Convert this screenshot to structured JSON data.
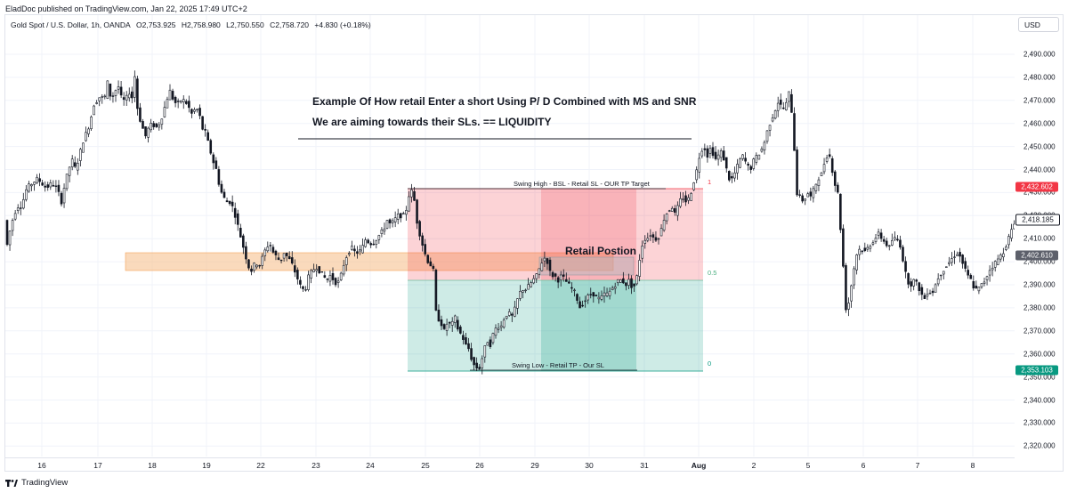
{
  "header": {
    "publisher": "EladDoc published on TradingView.com, Jan 22, 2025 17:49 UTC+2"
  },
  "symbol_bar": {
    "name": "Gold Spot / U.S. Dollar, 1h, OANDA",
    "open": "O2,753.925",
    "high": "H2,758.980",
    "low": "L2,750.550",
    "close": "C2,758.720",
    "change": "+4.830 (+0.18%)"
  },
  "currency_button": "USD",
  "annotations": {
    "title_line1": "Example Of How retail Enter a short Using P/ D Combined with MS and SNR",
    "title_line2": "We are aiming towards their SLs. == LIQUIDITY",
    "swing_high": "Swing High - BSL - Retail SL - OUR TP Target",
    "swing_low": "Swing Low - Retail TP - Our SL",
    "retail_position": "Retail Postion",
    "fib_1": "1",
    "fib_05": "0.5",
    "fib_0": "0"
  },
  "price_axis": {
    "ticks": [
      "2,490.000",
      "2,480.000",
      "2,470.000",
      "2,460.000",
      "2,450.000",
      "2,440.000",
      "2,430.000",
      "2,420.000",
      "2,410.000",
      "2,400.000",
      "2,390.000",
      "2,380.000",
      "2,370.000",
      "2,360.000",
      "2,350.000",
      "2,340.000",
      "2,330.000",
      "2,320.000"
    ],
    "tags": [
      {
        "label": "2,432.602",
        "color": "#f23645",
        "text_color": "#ffffff"
      },
      {
        "label": "2,418.185",
        "color": "#ffffff",
        "text_color": "#131722"
      },
      {
        "label": "2,402.610",
        "color": "#5d606b",
        "text_color": "#ffffff"
      },
      {
        "label": "2,353.103",
        "color": "#089981",
        "text_color": "#ffffff"
      }
    ]
  },
  "time_axis": {
    "ticks": [
      "16",
      "17",
      "18",
      "19",
      "22",
      "23",
      "24",
      "25",
      "26",
      "29",
      "30",
      "31",
      "Aug",
      "2",
      "5",
      "6",
      "7",
      "8"
    ]
  },
  "footer": {
    "brand": "TradingView"
  },
  "colors": {
    "red_zone": "#f23645",
    "green_zone": "#089981",
    "orange_zone": "#f7a34f",
    "candle": "#131722"
  },
  "chart_data": {
    "type": "candlestick",
    "title": "Gold Spot / U.S. Dollar, 1h, OANDA",
    "ylim": [
      2314,
      2497
    ],
    "swing_high_price": 2432.602,
    "swing_low_price": 2353.103,
    "fib_05_price": 2392.85,
    "last_price": 2418.185,
    "key_levels": [
      2432.602,
      2418.185,
      2402.61,
      2353.103
    ],
    "path": [
      [
        0,
        2402
      ],
      [
        3,
        2410
      ],
      [
        8,
        2418
      ],
      [
        13,
        2424
      ],
      [
        18,
        2424
      ],
      [
        24,
        2432
      ],
      [
        30,
        2434
      ],
      [
        36,
        2436
      ],
      [
        41,
        2434
      ],
      [
        46,
        2432
      ],
      [
        52,
        2434
      ],
      [
        58,
        2432
      ],
      [
        63,
        2426
      ],
      [
        67,
        2434
      ],
      [
        71,
        2440
      ],
      [
        75,
        2444
      ],
      [
        79,
        2440
      ],
      [
        83,
        2446
      ],
      [
        87,
        2452
      ],
      [
        91,
        2456
      ],
      [
        95,
        2460
      ],
      [
        99,
        2468
      ],
      [
        103,
        2470
      ],
      [
        107,
        2472
      ],
      [
        111,
        2470
      ],
      [
        115,
        2478
      ],
      [
        119,
        2470
      ],
      [
        123,
        2474
      ],
      [
        127,
        2476
      ],
      [
        131,
        2470
      ],
      [
        135,
        2470
      ],
      [
        139,
        2474
      ],
      [
        141,
        2470
      ],
      [
        143,
        2472
      ],
      [
        145,
        2482
      ],
      [
        149,
        2464
      ],
      [
        153,
        2460
      ],
      [
        157,
        2454
      ],
      [
        161,
        2458
      ],
      [
        165,
        2460
      ],
      [
        169,
        2458
      ],
      [
        173,
        2460
      ],
      [
        177,
        2464
      ],
      [
        181,
        2470
      ],
      [
        185,
        2474
      ],
      [
        189,
        2470
      ],
      [
        193,
        2468
      ],
      [
        197,
        2470
      ],
      [
        201,
        2470
      ],
      [
        205,
        2468
      ],
      [
        209,
        2464
      ],
      [
        213,
        2466
      ],
      [
        217,
        2466
      ],
      [
        221,
        2458
      ],
      [
        225,
        2456
      ],
      [
        229,
        2450
      ],
      [
        233,
        2444
      ],
      [
        237,
        2440
      ],
      [
        241,
        2432
      ],
      [
        245,
        2428
      ],
      [
        249,
        2426
      ],
      [
        253,
        2426
      ],
      [
        257,
        2422
      ],
      [
        261,
        2416
      ],
      [
        265,
        2410
      ],
      [
        269,
        2404
      ],
      [
        273,
        2398
      ],
      [
        277,
        2396
      ],
      [
        281,
        2400
      ],
      [
        285,
        2398
      ],
      [
        289,
        2402
      ],
      [
        293,
        2406
      ],
      [
        297,
        2408
      ],
      [
        301,
        2404
      ],
      [
        305,
        2402
      ],
      [
        309,
        2400
      ],
      [
        313,
        2404
      ],
      [
        317,
        2402
      ],
      [
        321,
        2400
      ],
      [
        325,
        2396
      ],
      [
        329,
        2392
      ],
      [
        333,
        2388
      ],
      [
        337,
        2388
      ],
      [
        341,
        2394
      ],
      [
        345,
        2396
      ],
      [
        349,
        2398
      ],
      [
        353,
        2396
      ],
      [
        357,
        2394
      ],
      [
        361,
        2392
      ],
      [
        365,
        2394
      ],
      [
        369,
        2392
      ],
      [
        373,
        2390
      ],
      [
        377,
        2394
      ],
      [
        381,
        2400
      ],
      [
        385,
        2404
      ],
      [
        389,
        2406
      ],
      [
        393,
        2404
      ],
      [
        397,
        2404
      ],
      [
        401,
        2406
      ],
      [
        405,
        2410
      ],
      [
        409,
        2408
      ],
      [
        413,
        2408
      ],
      [
        417,
        2410
      ],
      [
        421,
        2412
      ],
      [
        425,
        2414
      ],
      [
        429,
        2418
      ],
      [
        433,
        2416
      ],
      [
        437,
        2418
      ],
      [
        441,
        2420
      ],
      [
        445,
        2420
      ],
      [
        449,
        2420
      ],
      [
        453,
        2428
      ],
      [
        455,
        2432
      ],
      [
        459,
        2428
      ],
      [
        463,
        2416
      ],
      [
        467,
        2410
      ],
      [
        471,
        2404
      ],
      [
        475,
        2400
      ],
      [
        479,
        2398
      ],
      [
        481,
        2396
      ],
      [
        483,
        2380
      ],
      [
        485,
        2376
      ],
      [
        489,
        2374
      ],
      [
        493,
        2370
      ],
      [
        497,
        2374
      ],
      [
        501,
        2372
      ],
      [
        505,
        2376
      ],
      [
        509,
        2370
      ],
      [
        513,
        2368
      ],
      [
        517,
        2364
      ],
      [
        521,
        2362
      ],
      [
        525,
        2356
      ],
      [
        529,
        2354
      ],
      [
        533,
        2354
      ],
      [
        537,
        2360
      ],
      [
        541,
        2366
      ],
      [
        545,
        2364
      ],
      [
        549,
        2370
      ],
      [
        553,
        2372
      ],
      [
        557,
        2372
      ],
      [
        561,
        2376
      ],
      [
        565,
        2378
      ],
      [
        569,
        2376
      ],
      [
        573,
        2380
      ],
      [
        577,
        2386
      ],
      [
        581,
        2388
      ],
      [
        585,
        2388
      ],
      [
        589,
        2390
      ],
      [
        593,
        2392
      ],
      [
        597,
        2394
      ],
      [
        601,
        2398
      ],
      [
        605,
        2402
      ],
      [
        609,
        2400
      ],
      [
        613,
        2394
      ],
      [
        617,
        2394
      ],
      [
        621,
        2392
      ],
      [
        625,
        2394
      ],
      [
        629,
        2392
      ],
      [
        633,
        2390
      ],
      [
        637,
        2388
      ],
      [
        641,
        2386
      ],
      [
        645,
        2380
      ],
      [
        649,
        2382
      ],
      [
        653,
        2384
      ],
      [
        657,
        2386
      ],
      [
        661,
        2386
      ],
      [
        665,
        2384
      ],
      [
        669,
        2384
      ],
      [
        673,
        2386
      ],
      [
        677,
        2386
      ],
      [
        681,
        2388
      ],
      [
        685,
        2390
      ],
      [
        689,
        2392
      ],
      [
        693,
        2392
      ],
      [
        697,
        2390
      ],
      [
        701,
        2392
      ],
      [
        705,
        2388
      ],
      [
        709,
        2392
      ],
      [
        713,
        2402
      ],
      [
        717,
        2410
      ],
      [
        721,
        2410
      ],
      [
        725,
        2412
      ],
      [
        729,
        2410
      ],
      [
        733,
        2410
      ],
      [
        737,
        2414
      ],
      [
        741,
        2420
      ],
      [
        745,
        2422
      ],
      [
        749,
        2424
      ],
      [
        753,
        2420
      ],
      [
        757,
        2426
      ],
      [
        761,
        2428
      ],
      [
        765,
        2426
      ],
      [
        769,
        2428
      ],
      [
        773,
        2434
      ],
      [
        777,
        2440
      ],
      [
        781,
        2448
      ],
      [
        785,
        2450
      ],
      [
        789,
        2446
      ],
      [
        793,
        2450
      ],
      [
        797,
        2444
      ],
      [
        801,
        2446
      ],
      [
        805,
        2448
      ],
      [
        809,
        2442
      ],
      [
        813,
        2436
      ],
      [
        817,
        2436
      ],
      [
        821,
        2440
      ],
      [
        825,
        2444
      ],
      [
        829,
        2446
      ],
      [
        833,
        2442
      ],
      [
        837,
        2440
      ],
      [
        841,
        2444
      ],
      [
        845,
        2446
      ],
      [
        849,
        2448
      ],
      [
        853,
        2452
      ],
      [
        857,
        2458
      ],
      [
        861,
        2462
      ],
      [
        865,
        2466
      ],
      [
        869,
        2470
      ],
      [
        873,
        2466
      ],
      [
        877,
        2468
      ],
      [
        881,
        2474
      ],
      [
        885,
        2460
      ],
      [
        889,
        2430
      ],
      [
        893,
        2428
      ],
      [
        897,
        2426
      ],
      [
        901,
        2430
      ],
      [
        905,
        2428
      ],
      [
        909,
        2432
      ],
      [
        913,
        2436
      ],
      [
        917,
        2438
      ],
      [
        921,
        2444
      ],
      [
        925,
        2448
      ],
      [
        929,
        2440
      ],
      [
        933,
        2432
      ],
      [
        937,
        2428
      ],
      [
        939,
        2408
      ],
      [
        941,
        2400
      ],
      [
        943,
        2390
      ],
      [
        945,
        2376
      ],
      [
        949,
        2386
      ],
      [
        953,
        2396
      ],
      [
        957,
        2404
      ],
      [
        961,
        2406
      ],
      [
        965,
        2404
      ],
      [
        969,
        2406
      ],
      [
        973,
        2408
      ],
      [
        977,
        2410
      ],
      [
        981,
        2412
      ],
      [
        985,
        2410
      ],
      [
        989,
        2408
      ],
      [
        993,
        2406
      ],
      [
        997,
        2410
      ],
      [
        1001,
        2410
      ],
      [
        1005,
        2408
      ],
      [
        1009,
        2400
      ],
      [
        1013,
        2392
      ],
      [
        1017,
        2390
      ],
      [
        1021,
        2392
      ],
      [
        1025,
        2390
      ],
      [
        1029,
        2386
      ],
      [
        1033,
        2384
      ],
      [
        1037,
        2388
      ],
      [
        1041,
        2386
      ],
      [
        1045,
        2390
      ],
      [
        1049,
        2394
      ],
      [
        1053,
        2396
      ],
      [
        1057,
        2398
      ],
      [
        1061,
        2400
      ],
      [
        1065,
        2402
      ],
      [
        1069,
        2404
      ],
      [
        1073,
        2402
      ],
      [
        1077,
        2398
      ],
      [
        1081,
        2394
      ],
      [
        1085,
        2392
      ],
      [
        1089,
        2388
      ],
      [
        1093,
        2388
      ],
      [
        1097,
        2390
      ],
      [
        1101,
        2392
      ],
      [
        1105,
        2396
      ],
      [
        1109,
        2398
      ],
      [
        1113,
        2400
      ],
      [
        1117,
        2402
      ],
      [
        1121,
        2404
      ],
      [
        1125,
        2408
      ],
      [
        1129,
        2412
      ],
      [
        1133,
        2416
      ],
      [
        1137,
        2418
      ]
    ]
  }
}
